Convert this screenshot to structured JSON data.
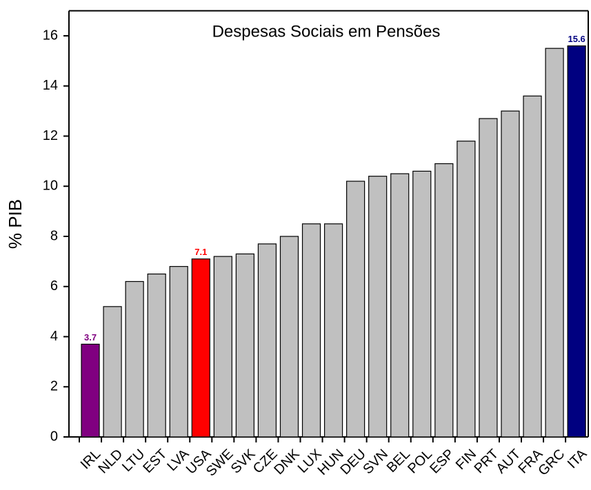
{
  "chart_data": {
    "type": "bar",
    "title": "Despesas Sociais em Pensões",
    "y_label": "% PIB",
    "categories": [
      "IRL",
      "NLD",
      "LTU",
      "EST",
      "LVA",
      "USA",
      "SWE",
      "SVK",
      "CZE",
      "DNK",
      "LUX",
      "HUN",
      "DEU",
      "SVN",
      "BEL",
      "POL",
      "ESP",
      "FIN",
      "PRT",
      "AUT",
      "FRA",
      "GRC",
      "ITA"
    ],
    "values": [
      3.7,
      5.2,
      6.2,
      6.5,
      6.8,
      7.1,
      7.2,
      7.3,
      7.7,
      8.0,
      8.5,
      8.5,
      10.2,
      10.4,
      10.5,
      10.6,
      10.9,
      11.8,
      12.7,
      13.0,
      13.6,
      15.5,
      15.6
    ],
    "value_labels": [
      "3.7",
      null,
      null,
      null,
      null,
      "7.1",
      null,
      null,
      null,
      null,
      null,
      null,
      null,
      null,
      null,
      null,
      null,
      null,
      null,
      null,
      null,
      null,
      "15.6"
    ],
    "colors": [
      "#800080",
      "#c0c0c0",
      "#c0c0c0",
      "#c0c0c0",
      "#c0c0c0",
      "#ff0000",
      "#c0c0c0",
      "#c0c0c0",
      "#c0c0c0",
      "#c0c0c0",
      "#c0c0c0",
      "#c0c0c0",
      "#c0c0c0",
      "#c0c0c0",
      "#c0c0c0",
      "#c0c0c0",
      "#c0c0c0",
      "#c0c0c0",
      "#c0c0c0",
      "#c0c0c0",
      "#c0c0c0",
      "#c0c0c0",
      "#000080"
    ],
    "ylim": [
      0,
      17
    ],
    "yticks": [
      0,
      2,
      4,
      6,
      8,
      10,
      12,
      14,
      16
    ]
  }
}
